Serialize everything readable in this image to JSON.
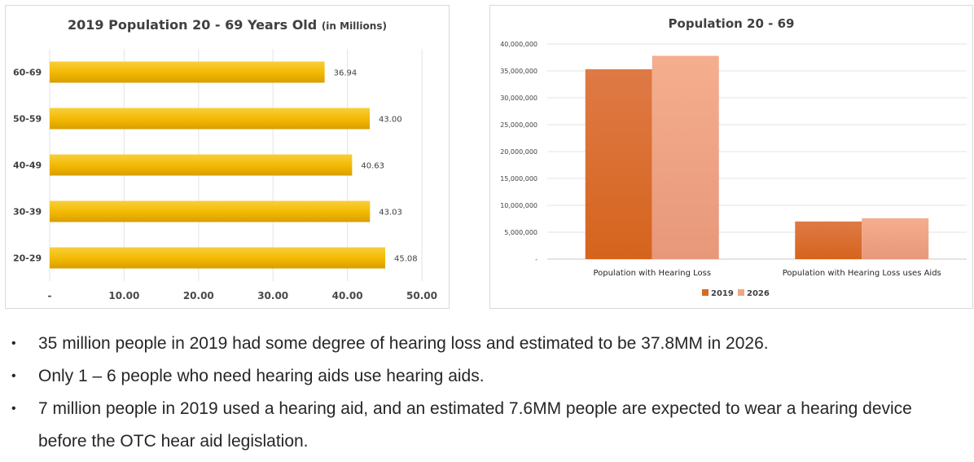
{
  "chart_data": [
    {
      "type": "bar",
      "orientation": "horizontal",
      "title": "2019 Population 20 - 69 Years Old",
      "title_suffix": "(in Millions)",
      "categories": [
        "20-29",
        "30-39",
        "40-49",
        "50-59",
        "60-69"
      ],
      "values": [
        45.08,
        43.03,
        40.63,
        43.0,
        36.94
      ],
      "data_labels": [
        "45.08",
        "43.03",
        "40.63",
        "43.00",
        "36.94"
      ],
      "x_ticks": [
        "-",
        "10.00",
        "20.00",
        "30.00",
        "40.00",
        "50.00"
      ],
      "xlim": [
        0,
        50
      ],
      "grid": true,
      "colors": {
        "bar": "#f2b800",
        "bar_dark": "#d89e00",
        "label": "#404040"
      }
    },
    {
      "type": "bar",
      "title": "Population 20 - 69",
      "categories": [
        "Population with Hearing Loss",
        "Population with Hearing Loss uses Aids"
      ],
      "series": [
        {
          "name": "2019",
          "values": [
            35300000,
            7000000
          ],
          "color": "#d86a25"
        },
        {
          "name": "2026",
          "values": [
            37800000,
            7600000
          ],
          "color": "#f0a683"
        }
      ],
      "y_ticks": [
        "-",
        "5,000,000",
        "10,000,000",
        "15,000,000",
        "20,000,000",
        "25,000,000",
        "30,000,000",
        "35,000,000",
        "40,000,000"
      ],
      "ylim": [
        0,
        40000000
      ],
      "grid": true,
      "legend_position": "bottom"
    }
  ],
  "bullets": [
    {
      "symbol": "•",
      "text": "35 million people in 2019 had some degree of hearing loss and estimated to be 37.8MM in 2026."
    },
    {
      "symbol": "•",
      "text": "Only 1 – 6 people who need hearing aids use hearing aids."
    },
    {
      "symbol": "•",
      "text": "7 million people in 2019 used a hearing aid, and an estimated 7.6MM people are expected to wear a hearing device"
    },
    {
      "symbol": "",
      "text": "before the OTC hear aid legislation."
    }
  ]
}
